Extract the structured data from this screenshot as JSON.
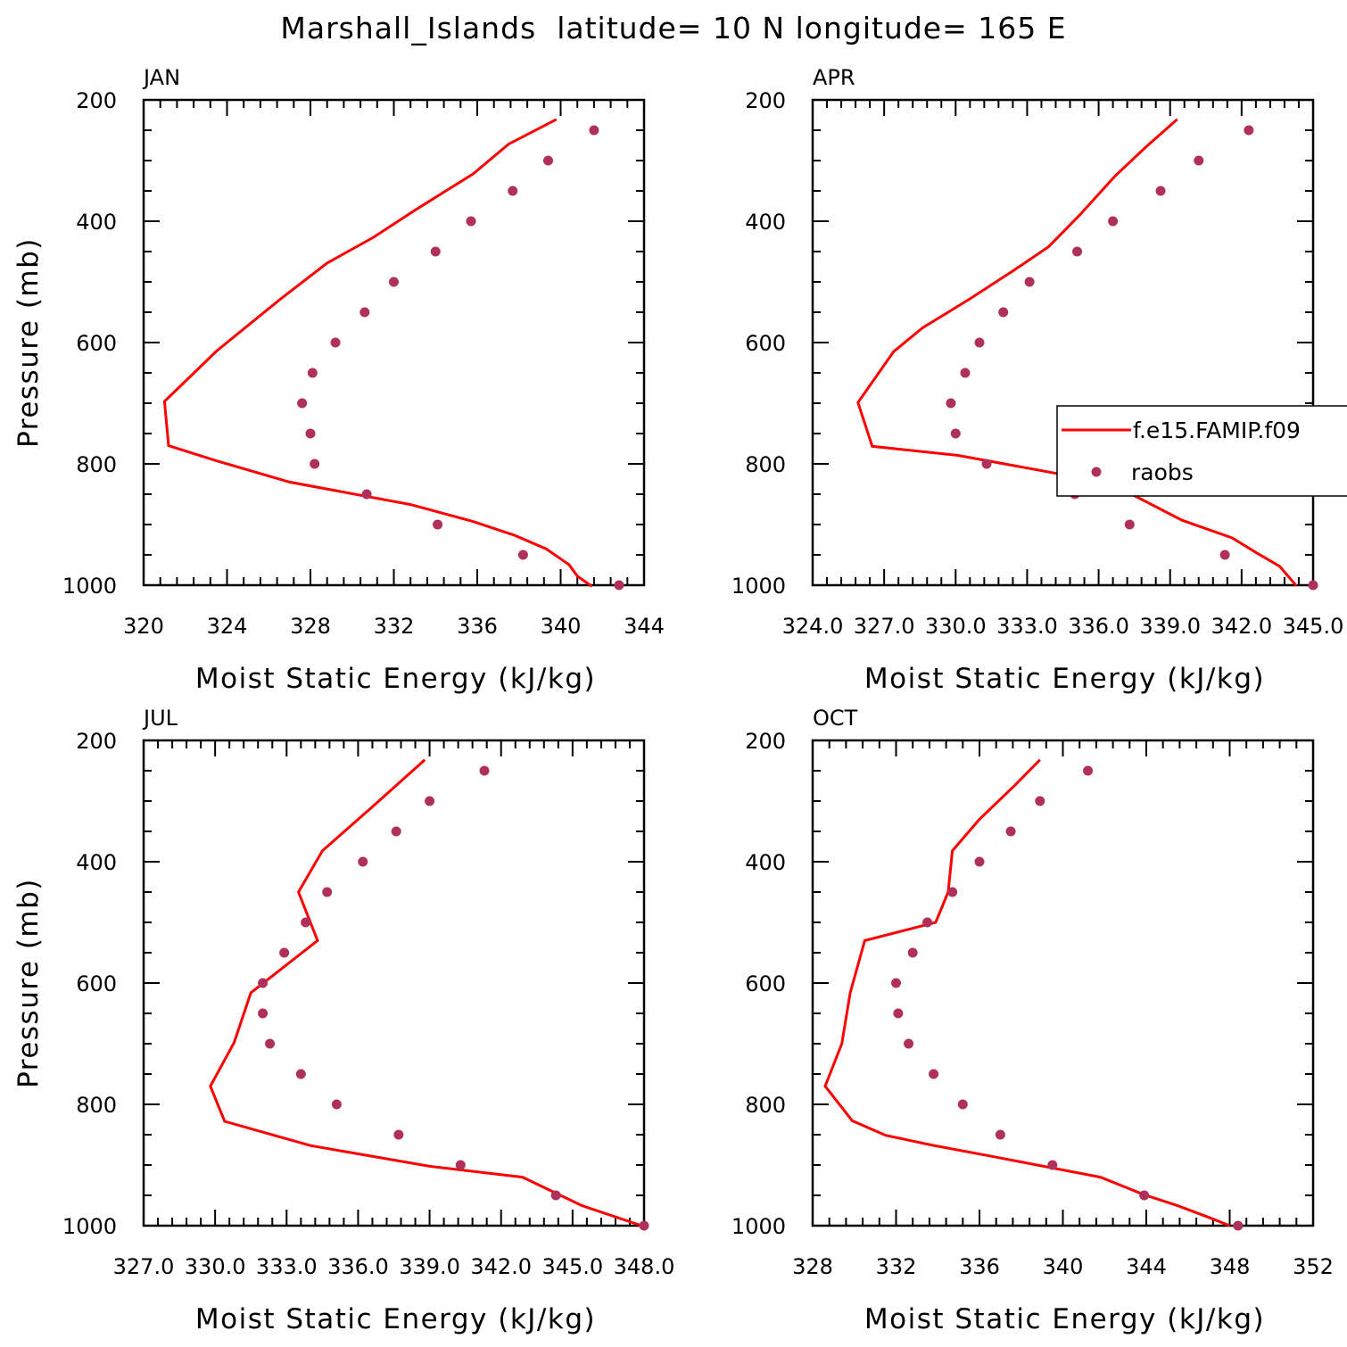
{
  "title": "Marshall_Islands  latitude= 10 N longitude= 165 E",
  "colors": {
    "model_line": "#ff0000",
    "raobs_marker": "#b0305c",
    "axis": "#000000"
  },
  "legend": {
    "model_label": "f.e15.FAMIP.f09",
    "obs_label": "raobs"
  },
  "chart_data": [
    {
      "type": "line",
      "panel": "JAN",
      "xlabel": "Moist Static Energy (kJ/kg)",
      "ylabel": "Pressure (mb)",
      "xlim": [
        320,
        344
      ],
      "ylim": [
        1000,
        200
      ],
      "xticks": [
        320,
        324,
        328,
        332,
        336,
        340,
        344
      ],
      "xtick_labels": [
        "320",
        "324",
        "328",
        "332",
        "336",
        "340",
        "344"
      ],
      "yticks": [
        200,
        400,
        600,
        800,
        1000
      ],
      "ytick_labels": [
        "200",
        "400",
        "600",
        "800",
        "1000"
      ],
      "series": [
        {
          "name": "f.e15.FAMIP.f09",
          "kind": "line",
          "x": [
            339.8,
            337.5,
            335.8,
            333.0,
            331.0,
            328.8,
            326.5,
            323.5,
            321.0,
            321.2,
            323.5,
            327.0,
            332.8,
            335.8,
            337.8,
            339.3,
            340.4,
            340.8,
            341.5
          ],
          "y": [
            232,
            273,
            322,
            382,
            427,
            469,
            530,
            614,
            697,
            770,
            795,
            830,
            867,
            895,
            918,
            940,
            966,
            985,
            1002
          ]
        },
        {
          "name": "raobs",
          "kind": "scatter",
          "x": [
            341.6,
            339.4,
            337.7,
            335.7,
            334.0,
            332.0,
            330.6,
            329.2,
            328.1,
            327.6,
            328.0,
            328.2,
            330.7,
            334.1,
            338.2,
            342.8
          ],
          "y": [
            250,
            300,
            350,
            400,
            450,
            500,
            550,
            600,
            650,
            700,
            750,
            800,
            850,
            900,
            950,
            1000
          ]
        }
      ]
    },
    {
      "type": "line",
      "panel": "APR",
      "xlabel": "Moist Static Energy (kJ/kg)",
      "ylabel": "",
      "xlim": [
        324,
        345
      ],
      "ylim": [
        1000,
        200
      ],
      "xticks": [
        324,
        327,
        330,
        333,
        336,
        339,
        342,
        345
      ],
      "xtick_labels": [
        "324.0",
        "327.0",
        "330.0",
        "333.0",
        "336.0",
        "339.0",
        "342.0",
        "345.0"
      ],
      "yticks": [
        200,
        400,
        600,
        800,
        1000
      ],
      "ytick_labels": [
        "200",
        "400",
        "600",
        "800",
        "1000"
      ],
      "series": [
        {
          "name": "f.e15.FAMIP.f09",
          "kind": "line",
          "x": [
            339.3,
            338.0,
            336.7,
            335.2,
            333.9,
            332.4,
            330.6,
            328.6,
            327.4,
            325.9,
            326.5,
            330.1,
            336.5,
            339.5,
            341.6,
            342.6,
            343.6,
            344.3
          ],
          "y": [
            232,
            277,
            325,
            390,
            442,
            482,
            528,
            576,
            615,
            699,
            771,
            786,
            832,
            893,
            922,
            946,
            969,
            1001
          ]
        },
        {
          "name": "raobs",
          "kind": "scatter",
          "x": [
            342.3,
            340.2,
            338.6,
            336.6,
            335.1,
            333.1,
            332.0,
            331.0,
            330.4,
            329.8,
            330.0,
            331.3,
            335.0,
            337.3,
            341.3,
            345.0
          ],
          "y": [
            250,
            300,
            350,
            400,
            450,
            500,
            550,
            600,
            650,
            700,
            750,
            800,
            850,
            900,
            950,
            1000
          ]
        }
      ]
    },
    {
      "type": "line",
      "panel": "JUL",
      "xlabel": "Moist Static Energy (kJ/kg)",
      "ylabel": "Pressure (mb)",
      "xlim": [
        327,
        348
      ],
      "ylim": [
        1000,
        200
      ],
      "xticks": [
        327,
        330,
        333,
        336,
        339,
        342,
        345,
        348
      ],
      "xtick_labels": [
        "327.0",
        "330.0",
        "333.0",
        "336.0",
        "339.0",
        "342.0",
        "345.0",
        "348.0"
      ],
      "yticks": [
        200,
        400,
        600,
        800,
        1000
      ],
      "ytick_labels": [
        "200",
        "400",
        "600",
        "800",
        "1000"
      ],
      "series": [
        {
          "name": "f.e15.FAMIP.f09",
          "kind": "line",
          "x": [
            338.8,
            336.5,
            334.5,
            333.5,
            334.3,
            331.5,
            330.8,
            329.8,
            330.4,
            334.0,
            339.0,
            342.9,
            345.4,
            347.9
          ],
          "y": [
            232,
            313,
            382,
            450,
            530,
            616,
            698,
            770,
            828,
            868,
            902,
            920,
            967,
            1000
          ]
        },
        {
          "name": "raobs",
          "kind": "scatter",
          "x": [
            341.3,
            339.0,
            337.6,
            336.2,
            334.7,
            333.8,
            332.9,
            332.0,
            332.0,
            332.3,
            333.6,
            335.1,
            337.7,
            340.3,
            344.3,
            348.0
          ],
          "y": [
            250,
            300,
            350,
            400,
            450,
            500,
            550,
            600,
            650,
            700,
            750,
            800,
            850,
            900,
            950,
            1000
          ]
        }
      ]
    },
    {
      "type": "line",
      "panel": "OCT",
      "xlabel": "Moist Static Energy (kJ/kg)",
      "ylabel": "",
      "xlim": [
        328,
        352
      ],
      "ylim": [
        1000,
        200
      ],
      "xticks": [
        328,
        332,
        336,
        340,
        344,
        348,
        352
      ],
      "xtick_labels": [
        "328",
        "332",
        "336",
        "340",
        "344",
        "348",
        "352"
      ],
      "yticks": [
        200,
        400,
        600,
        800,
        1000
      ],
      "ytick_labels": [
        "200",
        "400",
        "600",
        "800",
        "1000"
      ],
      "series": [
        {
          "name": "f.e15.FAMIP.f09",
          "kind": "line",
          "x": [
            338.9,
            337.7,
            336.0,
            334.7,
            334.5,
            333.9,
            330.5,
            329.8,
            329.4,
            328.6,
            329.9,
            331.5,
            333.7,
            336.8,
            341.8,
            343.9,
            345.5,
            346.9,
            348.0
          ],
          "y": [
            232,
            274,
            330,
            382,
            450,
            500,
            530,
            616,
            700,
            770,
            827,
            851,
            867,
            887,
            920,
            949,
            967,
            985,
            1000
          ]
        },
        {
          "name": "raobs",
          "kind": "scatter",
          "x": [
            341.2,
            338.9,
            337.5,
            336.0,
            334.7,
            333.5,
            332.8,
            332.0,
            332.1,
            332.6,
            333.8,
            335.2,
            337.0,
            339.5,
            343.9,
            348.4
          ],
          "y": [
            250,
            300,
            350,
            400,
            450,
            500,
            550,
            600,
            650,
            700,
            750,
            800,
            850,
            900,
            950,
            1000
          ]
        }
      ]
    }
  ]
}
